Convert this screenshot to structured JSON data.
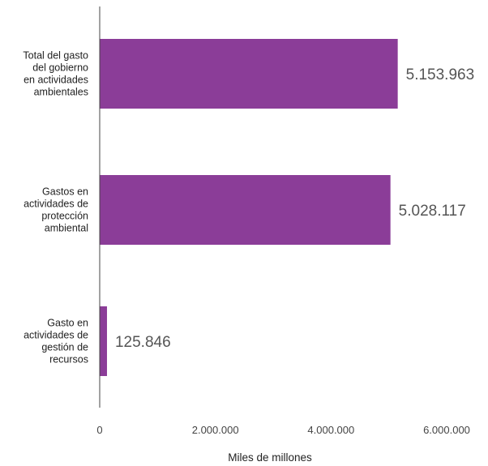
{
  "chart_data": {
    "type": "bar",
    "orientation": "horizontal",
    "categories": [
      [
        "Total del gasto",
        "del gobierno",
        "en actividades",
        "ambientales"
      ],
      [
        "Gastos en",
        "actividades de",
        "protección",
        "ambiental"
      ],
      [
        "Gasto en",
        "actividades de",
        "gestión de",
        "recursos"
      ]
    ],
    "values": [
      5153963,
      5028117,
      125846
    ],
    "value_labels": [
      "5.153.963",
      "5.028.117",
      "125.846"
    ],
    "xlabel": "Miles de millones",
    "xlim": [
      0,
      6000000
    ],
    "xticks": [
      0,
      2000000,
      4000000,
      6000000
    ],
    "xtick_labels": [
      "0",
      "2.000.000",
      "4.000.000",
      "6.000.000"
    ],
    "grid": false,
    "bar_color": "#8b3d98"
  }
}
